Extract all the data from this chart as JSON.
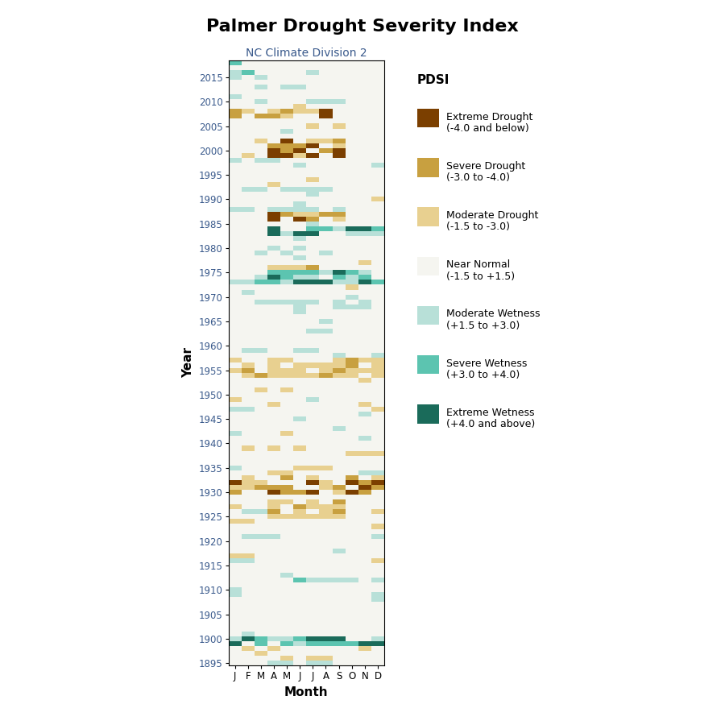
{
  "title": "Palmer Drought Severity Index",
  "subtitle": "NC Climate Division 2",
  "xlabel": "Month",
  "ylabel": "Year",
  "year_start": 1895,
  "year_end": 2018,
  "months": [
    "J",
    "F",
    "M",
    "A",
    "M",
    "J",
    "J",
    "A",
    "S",
    "O",
    "N",
    "D"
  ],
  "colors": {
    "extreme_drought": "#7B3F00",
    "severe_drought": "#C8A040",
    "moderate_drought": "#E8D090",
    "near_normal": "#F5F5F0",
    "moderate_wet": "#B8E0D8",
    "severe_wet": "#5CC4B0",
    "extreme_wet": "#1A6B5A"
  },
  "legend_labels": [
    "Extreme Drought\n(-4.0 and below)",
    "Severe Drought\n(-3.0 to -4.0)",
    "Moderate Drought\n(-1.5 to -3.0)",
    "Near Normal\n(-1.5 to +1.5)",
    "Moderate Wetness\n(+1.5 to +3.0)",
    "Severe Wetness\n(+3.0 to +4.0)",
    "Extreme Wetness\n(+4.0 and above)"
  ],
  "title_fontsize": 16,
  "subtitle_fontsize": 10,
  "axis_label_fontsize": 11,
  "tick_fontsize": 8.5,
  "legend_fontsize": 9,
  "background_color": "#FFFFFF",
  "text_color": "#3A5A8C"
}
